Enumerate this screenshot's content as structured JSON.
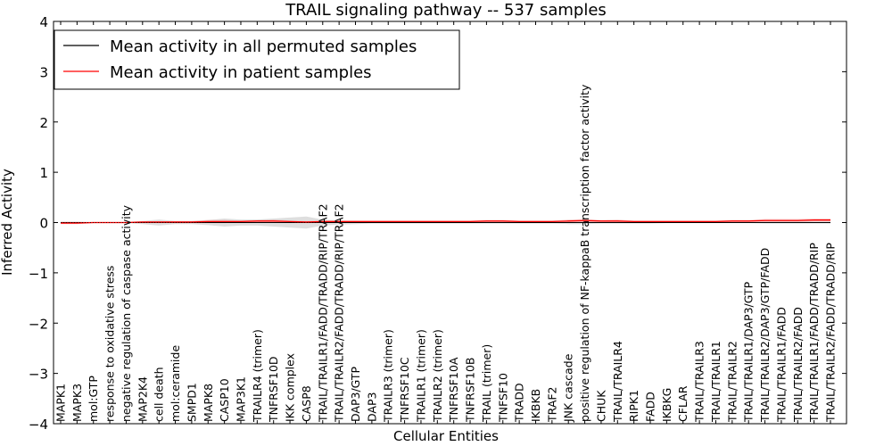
{
  "chart_data": {
    "type": "line",
    "title": "TRAIL signaling pathway -- 537 samples",
    "xlabel": "Cellular Entities",
    "ylabel": "Inferred Activity",
    "ylim": [
      -4,
      4
    ],
    "yticks": [
      4,
      3,
      2,
      1,
      0,
      -1,
      -2,
      -3,
      -4
    ],
    "ytick_labels": [
      "4",
      "3",
      "2",
      "1",
      "0",
      "−1",
      "−2",
      "−3",
      "−4"
    ],
    "legend_position": "top-left",
    "categories": [
      "MAPK1",
      "MAPK3",
      "mol:GTP",
      "response to oxidative stress",
      "negative regulation of caspase activity",
      "MAP2K4",
      "cell death",
      "mol:ceramide",
      "SMPD1",
      "MAPK8",
      "CASP10",
      "MAP3K1",
      "TRAILR4 (trimer)",
      "TNFRSF10D",
      "IKK complex",
      "CASP8",
      "TRAIL/TRAILR1/FADD/TRADD/RIP/TRAF2",
      "TRAIL/TRAILR2/FADD/TRADD/RIP/TRAF2",
      "DAP3/GTP",
      "DAP3",
      "TRAILR3 (trimer)",
      "TNFRSF10C",
      "TRAILR1 (trimer)",
      "TRAILR2 (trimer)",
      "TNFRSF10A",
      "TNFRSF10B",
      "TRAIL (trimer)",
      "TNFSF10",
      "TRADD",
      "IKBKB",
      "TRAF2",
      "JNK cascade",
      "positive regulation of NF-kappaB transcription factor activity",
      "CHUK",
      "TRAIL/TRAILR4",
      "RIPK1",
      "FADD",
      "IKBKG",
      "CFLAR",
      "TRAIL/TRAILR3",
      "TRAIL/TRAILR1",
      "TRAIL/TRAILR2",
      "TRAIL/TRAILR1/DAP3/GTP",
      "TRAIL/TRAILR2/DAP3/GTP/FADD",
      "TRAIL/TRAILR1/FADD",
      "TRAIL/TRAILR2/FADD",
      "TRAIL/TRAILR1/FADD/TRADD/RIP",
      "TRAIL/TRAILR2/FADD/TRADD/RIP"
    ],
    "series": [
      {
        "name": "Mean activity in all permuted samples",
        "color": "#000000",
        "values": [
          0,
          0,
          0,
          0,
          0,
          0,
          0,
          0,
          0,
          0,
          0,
          0,
          0,
          0,
          0,
          0,
          0,
          0,
          0,
          0,
          0,
          0,
          0,
          0,
          0,
          0,
          0,
          0,
          0,
          0,
          0,
          0,
          0,
          0,
          0,
          0,
          0,
          0,
          0,
          0,
          0,
          0,
          0,
          0,
          0,
          0,
          0,
          0
        ],
        "band_color": "#c8c8c8",
        "band_halfwidth": [
          0.02,
          0.02,
          0.01,
          0.01,
          0.01,
          0.03,
          0.06,
          0.03,
          0.03,
          0.05,
          0.08,
          0.06,
          0.06,
          0.08,
          0.1,
          0.12,
          0.06,
          0.04,
          0.03,
          0.02,
          0.02,
          0.02,
          0.02,
          0.02,
          0.02,
          0.02,
          0.02,
          0.02,
          0.02,
          0.02,
          0.02,
          0.03,
          0.03,
          0.02,
          0.02,
          0.02,
          0.02,
          0.01,
          0.01,
          0.01,
          0.01,
          0.01,
          0.01,
          0.02,
          0.02,
          0.02,
          0.02,
          0.02
        ]
      },
      {
        "name": "Mean activity in patient samples",
        "color": "#ff0000",
        "values": [
          -0.01,
          -0.01,
          0.0,
          0.0,
          0.0,
          0.01,
          0.01,
          0.01,
          0.01,
          0.02,
          0.02,
          0.02,
          0.03,
          0.03,
          0.02,
          0.01,
          0.02,
          0.02,
          0.02,
          0.02,
          0.02,
          0.02,
          0.02,
          0.02,
          0.02,
          0.02,
          0.03,
          0.03,
          0.02,
          0.02,
          0.02,
          0.03,
          0.04,
          0.03,
          0.03,
          0.02,
          0.02,
          0.02,
          0.02,
          0.02,
          0.02,
          0.03,
          0.03,
          0.04,
          0.04,
          0.04,
          0.05,
          0.05
        ],
        "band_color": "#f2a6a6",
        "band_halfwidth": [
          0.02,
          0.02,
          0.01,
          0.01,
          0.01,
          0.01,
          0.01,
          0.02,
          0.02,
          0.03,
          0.03,
          0.02,
          0.02,
          0.03,
          0.02,
          0.02,
          0.02,
          0.02,
          0.02,
          0.02,
          0.02,
          0.02,
          0.02,
          0.02,
          0.02,
          0.02,
          0.02,
          0.02,
          0.02,
          0.02,
          0.02,
          0.03,
          0.03,
          0.02,
          0.03,
          0.02,
          0.02,
          0.02,
          0.02,
          0.02,
          0.02,
          0.02,
          0.02,
          0.03,
          0.03,
          0.03,
          0.03,
          0.03
        ]
      }
    ]
  }
}
